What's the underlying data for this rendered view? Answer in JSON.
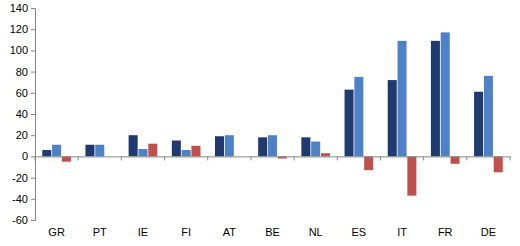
{
  "chart_data": {
    "type": "bar",
    "categories": [
      "GR",
      "PT",
      "IE",
      "FI",
      "AT",
      "BE",
      "NL",
      "ES",
      "IT",
      "FR",
      "DE"
    ],
    "series": [
      {
        "color": "#1f3a6e",
        "values": [
          6,
          11,
          20,
          15,
          19,
          18,
          18,
          63,
          72,
          109,
          61
        ]
      },
      {
        "color": "#4f81c7",
        "values": [
          11,
          11,
          7,
          6,
          20,
          20,
          14,
          75,
          109,
          117,
          76
        ]
      },
      {
        "color": "#c0504d",
        "values": [
          -5,
          0,
          12,
          10,
          0,
          -2,
          3,
          -13,
          -37,
          -7,
          -15
        ]
      }
    ],
    "ylim": [
      -60,
      140
    ],
    "yticks": [
      -60,
      -40,
      -20,
      0,
      20,
      40,
      60,
      80,
      100,
      120,
      140
    ],
    "grid": false
  }
}
